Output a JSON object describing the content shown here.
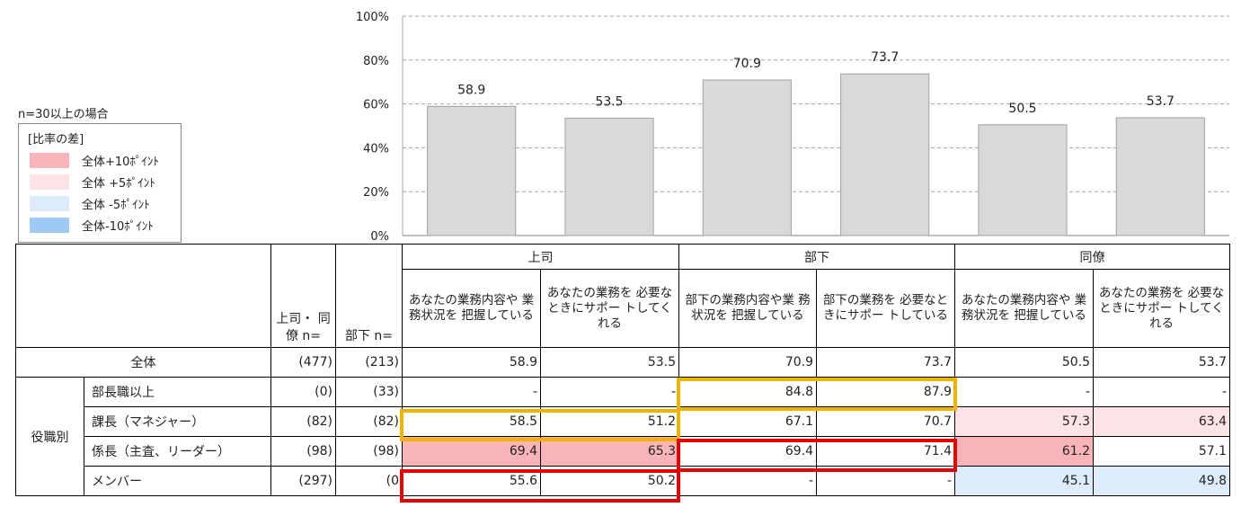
{
  "legend": {
    "note": "n=30以上の場合",
    "title": "[比率の差]",
    "items": [
      {
        "label": "全体+10ﾎﾟｲﾝﾄ",
        "color": "#f8b4b8"
      },
      {
        "label": "全体 +5ﾎﾟｲﾝﾄ",
        "color": "#fde3e5"
      },
      {
        "label": "全体 -5ﾎﾟｲﾝﾄ",
        "color": "#ddecfb"
      },
      {
        "label": "全体-10ﾎﾟｲﾝﾄ",
        "color": "#9fcaf4"
      }
    ]
  },
  "chart_data": {
    "type": "bar",
    "categories": [
      "上司・業務内容",
      "上司・サポート",
      "部下・業務内容",
      "部下・サポート",
      "同僚・業務内容",
      "同僚・サポート"
    ],
    "values": [
      58.9,
      53.5,
      70.9,
      73.7,
      50.5,
      53.7
    ],
    "value_labels": [
      "58.9",
      "53.5",
      "70.9",
      "73.7",
      "50.5",
      "53.7"
    ],
    "ylim": [
      0,
      100
    ],
    "yticks": [
      "0%",
      "20%",
      "40%",
      "60%",
      "80%",
      "100%"
    ],
    "grid": true,
    "bar_color": "#d9d9d9"
  },
  "table": {
    "groups": [
      "上司",
      "部下",
      "同僚"
    ],
    "n_headers": [
      "上司・\n同僚\nn=",
      "部下\nn="
    ],
    "columns": [
      "あなたの業務内容や\n業務状況を\n把握している",
      "あなたの業務を\n必要なときにサポー\nトしてくれる",
      "部下の業務内容や業\n務状況を\n把握している",
      "部下の業務を\n必要なときにサポー\nトしている",
      "あなたの業務内容や\n業務状況を\n把握している",
      "あなたの業務を\n必要なときにサポー\nトしてくれる"
    ],
    "total_row": {
      "label": "全体",
      "n1": "(477)",
      "n2": "(213)",
      "values": [
        "58.9",
        "53.5",
        "70.9",
        "73.7",
        "50.5",
        "53.7"
      ]
    },
    "group_label": "役職別",
    "rows": [
      {
        "label": "部長職以上",
        "n1": "(0)",
        "n2": "(33)",
        "values": [
          "-",
          "-",
          "84.8",
          "87.9",
          "-",
          "-"
        ]
      },
      {
        "label": "課長（マネジャー）",
        "n1": "(82)",
        "n2": "(82)",
        "values": [
          "58.5",
          "51.2",
          "67.1",
          "70.7",
          "57.3",
          "63.4"
        ]
      },
      {
        "label": "係長（主査、リーダー）",
        "n1": "(98)",
        "n2": "(98)",
        "values": [
          "69.4",
          "65.3",
          "69.4",
          "71.4",
          "61.2",
          "57.1"
        ]
      },
      {
        "label": "メンバー",
        "n1": "(297)",
        "n2": "(0",
        "values": [
          "55.6",
          "50.2",
          "-",
          "-",
          "45.1",
          "49.8"
        ]
      }
    ]
  }
}
